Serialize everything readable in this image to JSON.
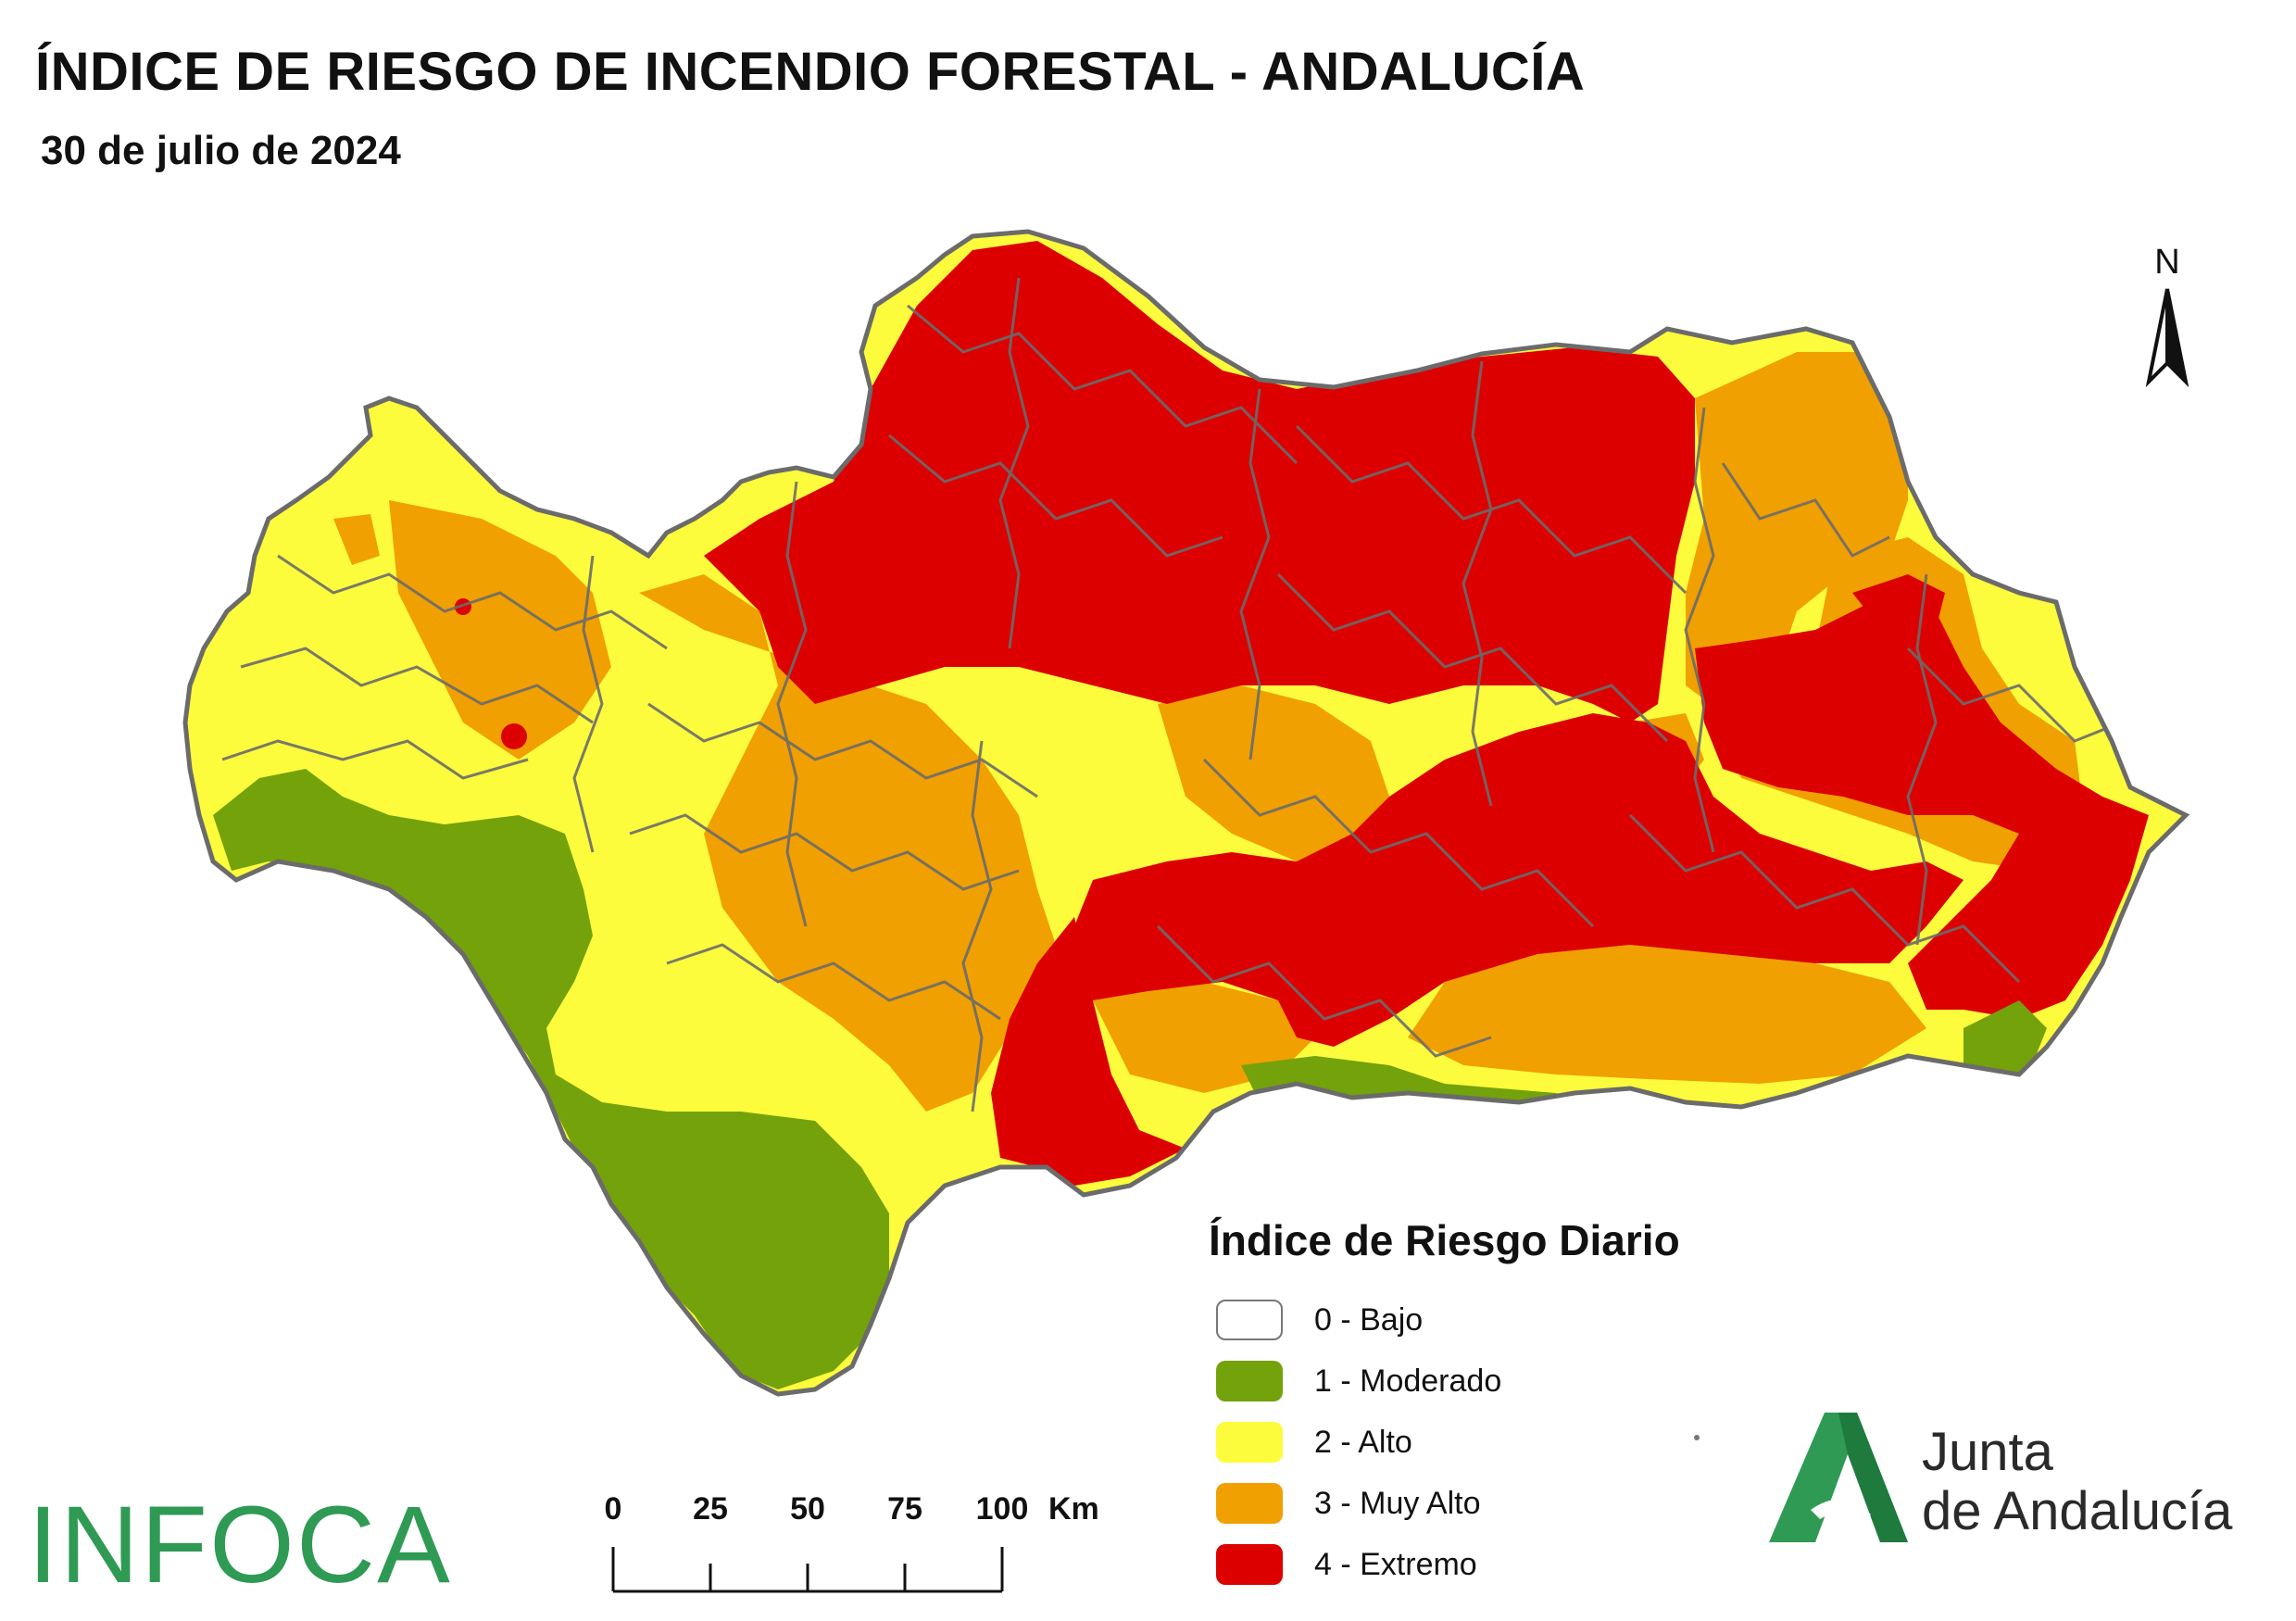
{
  "title": "ÍNDICE DE RIESGO DE INCENDIO FORESTAL - ANDALUCÍA",
  "subtitle": "30 de julio de 2024",
  "north_label": "N",
  "legend": {
    "title": "Índice de Riesgo Diario",
    "items": [
      {
        "label": "0 - Bajo",
        "color": "#ffffff"
      },
      {
        "label": "1 - Moderado",
        "color": "#74a20a"
      },
      {
        "label": "2 - Alto",
        "color": "#fcfc3c"
      },
      {
        "label": "3 - Muy Alto",
        "color": "#f0a000"
      },
      {
        "label": "4 - Extremo",
        "color": "#dd0000"
      }
    ]
  },
  "scale_bar": {
    "ticks": [
      "0",
      "25",
      "50",
      "75",
      "100"
    ],
    "unit": "Km"
  },
  "logos": {
    "infoca": "INFOCA",
    "junta_line1": "Junta",
    "junta_line2": "de Andalucía"
  },
  "colors": {
    "bajo": "#ffffff",
    "moderado": "#74a20a",
    "alto": "#fcfc3c",
    "muy_alto": "#f0a000",
    "extremo": "#dd0000",
    "boundary": "#6b6b6b",
    "brand_green": "#2f9a54"
  }
}
